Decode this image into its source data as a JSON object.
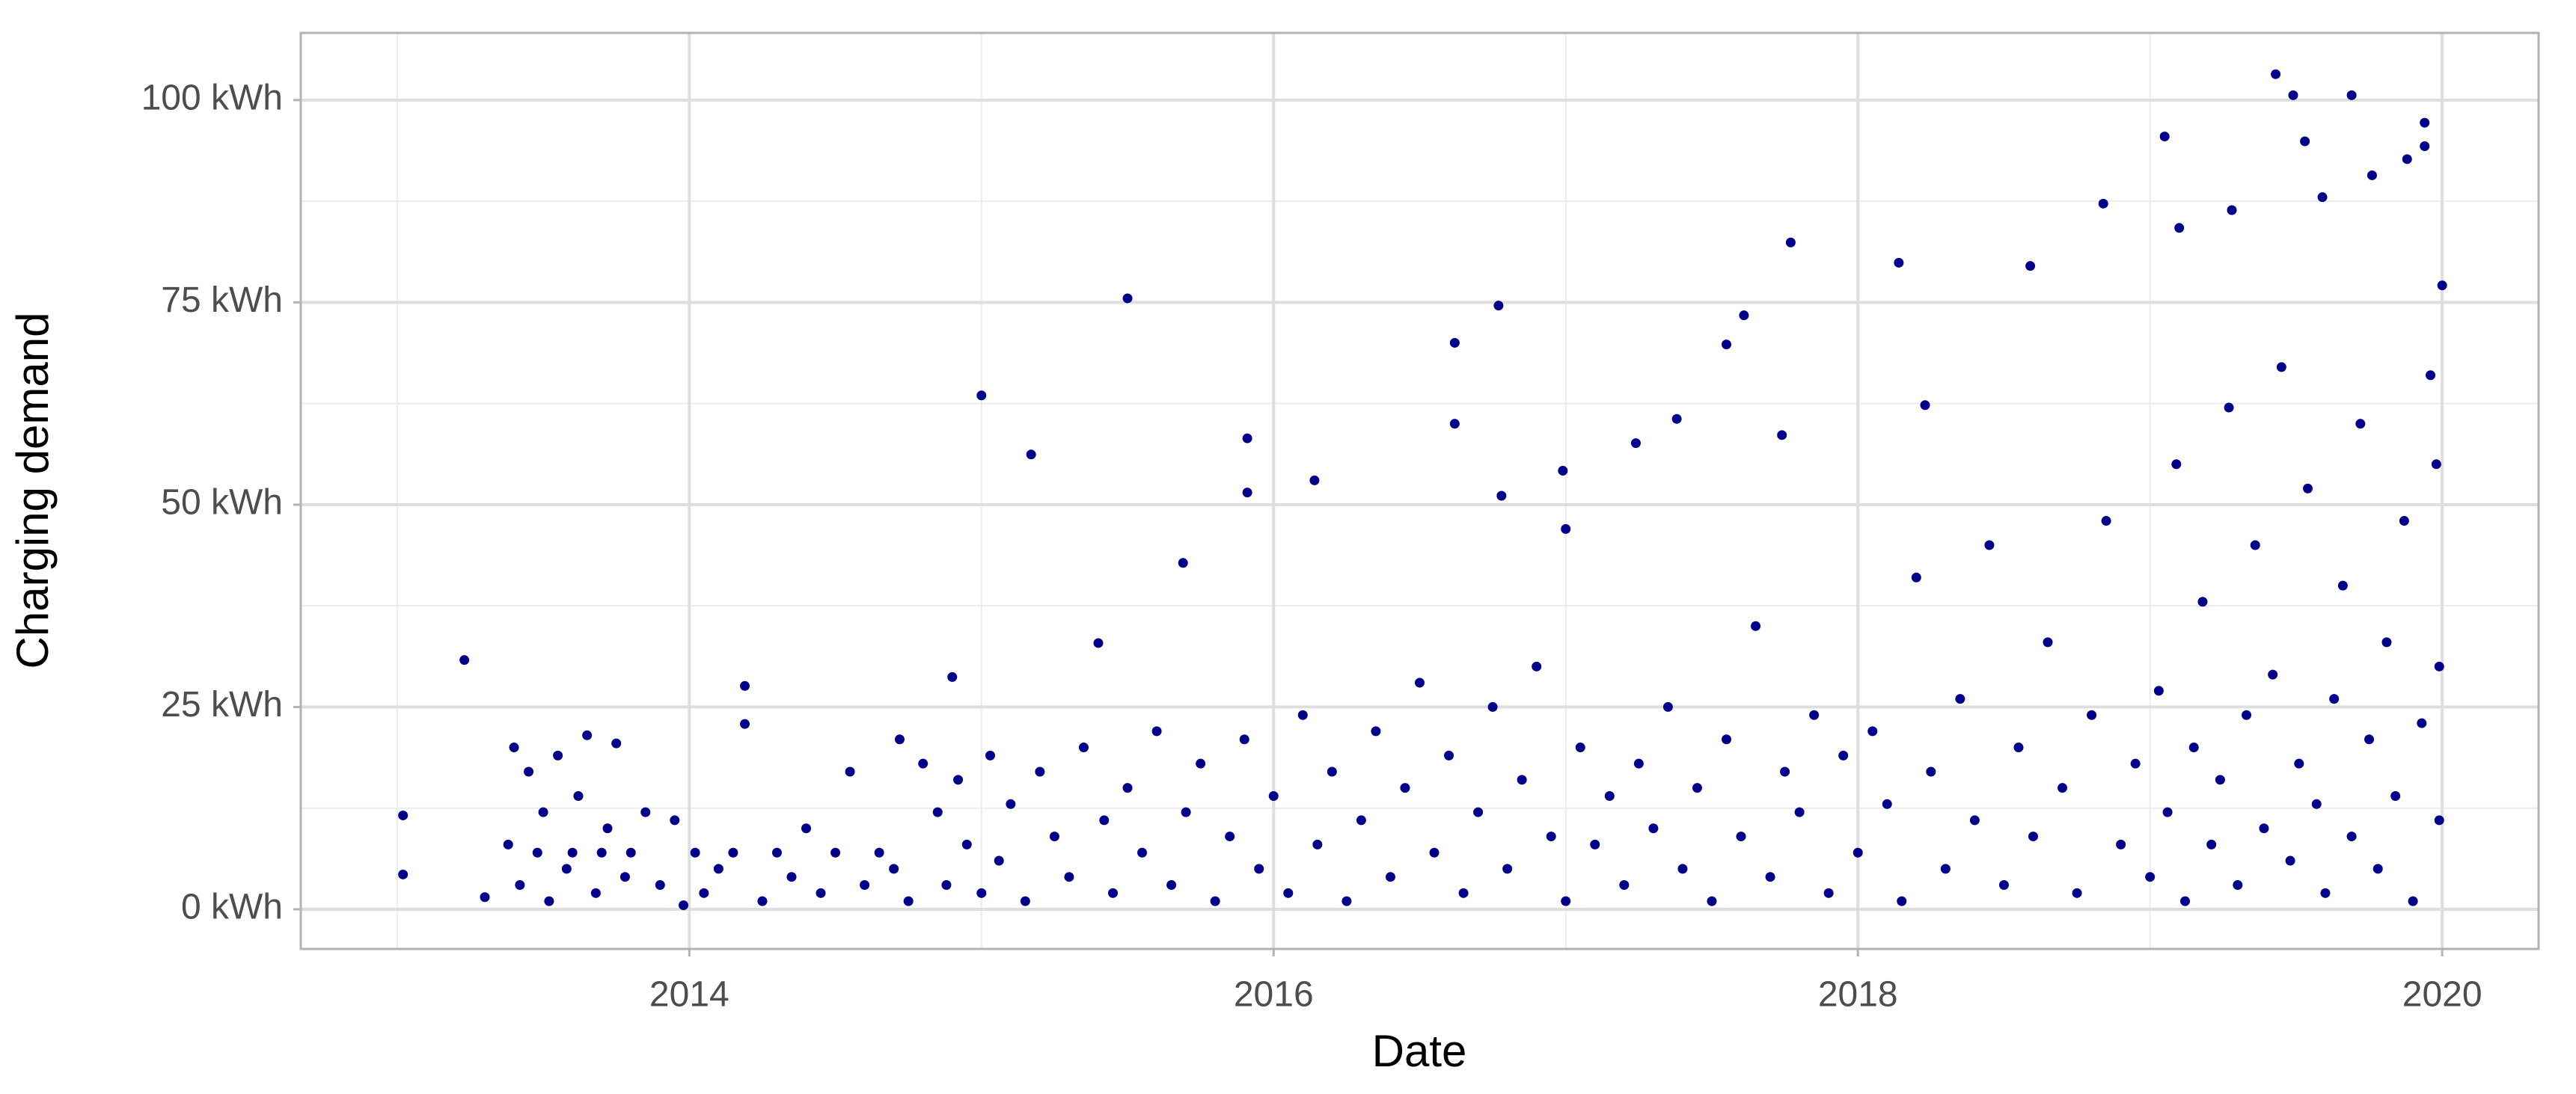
{
  "chart_data": {
    "type": "scatter",
    "x_label": "Date",
    "y_label": "Charging demand",
    "color": "#00008b",
    "grid": true,
    "xlim": [
      2012.67,
      2020.33
    ],
    "ylim": [
      -4.9,
      108.3
    ],
    "xticks": [
      2014,
      2016,
      2018,
      2020
    ],
    "yticks": [
      {
        "value": 0,
        "label": "0 kWh"
      },
      {
        "value": 25,
        "label": "25 kWh"
      },
      {
        "value": 50,
        "label": "50 kWh"
      },
      {
        "value": 75,
        "label": "75 kWh"
      },
      {
        "value": 100,
        "label": "100 kWh"
      }
    ],
    "x": [
      2013.02,
      2013.02,
      2013.23,
      2015.0,
      2015.17,
      2015.5,
      2015.69,
      2015.91,
      2015.91,
      2016.14,
      2016.62,
      2016.77,
      2016.62,
      2016.78,
      2016.99,
      2017.0,
      2017.24,
      2017.38,
      2017.61,
      2017.55,
      2017.77,
      2017.74,
      2018.14,
      2018.23,
      2018.59,
      2018.84,
      2019.05,
      2019.28,
      2019.43,
      2019.49,
      2019.69,
      2019.94,
      2019.94,
      2019.88,
      2019.53,
      2020.0,
      2019.59,
      2019.1,
      2019.76,
      2013.3,
      2013.38,
      2013.4,
      2013.42,
      2013.45,
      2013.48,
      2013.5,
      2013.52,
      2013.55,
      2013.58,
      2013.6,
      2013.62,
      2013.65,
      2013.68,
      2013.7,
      2013.72,
      2013.75,
      2013.78,
      2013.8,
      2013.85,
      2013.9,
      2013.95,
      2013.98,
      2014.02,
      2014.05,
      2014.1,
      2014.15,
      2014.19,
      2014.19,
      2014.25,
      2014.3,
      2014.35,
      2014.4,
      2014.45,
      2014.5,
      2014.55,
      2014.6,
      2014.65,
      2014.7,
      2014.72,
      2014.75,
      2014.8,
      2014.85,
      2014.88,
      2014.9,
      2014.92,
      2014.95,
      2015.0,
      2015.03,
      2015.06,
      2015.1,
      2015.15,
      2015.2,
      2015.25,
      2015.3,
      2015.35,
      2015.4,
      2015.42,
      2015.45,
      2015.5,
      2015.55,
      2015.6,
      2015.65,
      2015.7,
      2015.75,
      2015.8,
      2015.85,
      2015.9,
      2015.95,
      2016.0,
      2016.05,
      2016.1,
      2016.15,
      2016.2,
      2016.25,
      2016.3,
      2016.35,
      2016.4,
      2016.45,
      2016.5,
      2016.55,
      2016.6,
      2016.65,
      2016.7,
      2016.75,
      2016.8,
      2016.85,
      2016.9,
      2016.95,
      2017.0,
      2017.05,
      2017.1,
      2017.15,
      2017.2,
      2017.25,
      2017.3,
      2017.35,
      2017.4,
      2017.45,
      2017.5,
      2017.55,
      2017.6,
      2017.65,
      2017.7,
      2017.75,
      2017.8,
      2017.85,
      2017.9,
      2017.95,
      2018.0,
      2018.05,
      2018.1,
      2018.15,
      2018.2,
      2018.25,
      2018.3,
      2018.35,
      2018.4,
      2018.45,
      2018.5,
      2018.55,
      2018.6,
      2018.65,
      2018.7,
      2018.75,
      2018.8,
      2018.85,
      2018.9,
      2018.95,
      2019.0,
      2019.03,
      2019.06,
      2019.09,
      2019.12,
      2019.15,
      2019.18,
      2019.21,
      2019.24,
      2019.27,
      2019.3,
      2019.33,
      2019.36,
      2019.39,
      2019.42,
      2019.45,
      2019.48,
      2019.51,
      2019.54,
      2019.57,
      2019.6,
      2019.63,
      2019.66,
      2019.69,
      2019.72,
      2019.75,
      2019.78,
      2019.81,
      2019.84,
      2019.87,
      2019.9,
      2019.93,
      2019.96,
      2019.99,
      2019.99,
      2019.98
    ],
    "values": [
      11.6,
      4.3,
      30.8,
      63.5,
      56.2,
      75.5,
      42.8,
      58.2,
      51.5,
      53,
      70,
      74.6,
      60,
      51.1,
      54.2,
      47,
      57.6,
      60.6,
      73.4,
      69.8,
      82.4,
      58.6,
      79.9,
      62.3,
      79.5,
      87.2,
      95.5,
      86.4,
      103.2,
      100.6,
      100.6,
      97.2,
      94.3,
      92.7,
      94.9,
      77.1,
      88,
      84.2,
      90.7,
      1.5,
      8,
      20,
      3,
      17,
      7,
      12,
      1,
      19,
      5,
      7,
      14,
      21.5,
      2,
      7,
      10,
      20.5,
      4,
      7,
      12,
      3,
      11,
      0.5,
      7,
      2,
      5,
      7,
      27.6,
      22.9,
      1,
      7,
      4,
      10,
      2,
      7,
      17,
      3,
      7,
      5,
      21,
      1,
      18,
      12,
      3,
      28.7,
      16,
      8,
      2,
      19,
      6,
      13,
      1,
      17,
      9,
      4,
      20,
      32.9,
      11,
      2,
      15,
      7,
      22,
      3,
      12,
      18,
      1,
      9,
      21,
      5,
      14,
      2,
      24,
      8,
      17,
      1,
      11,
      22,
      4,
      15,
      28,
      7,
      19,
      2,
      12,
      25,
      5,
      16,
      30,
      9,
      1,
      20,
      8,
      14,
      3,
      18,
      10,
      25,
      5,
      15,
      1,
      21,
      9,
      35,
      4,
      17,
      12,
      24,
      2,
      19,
      7,
      22,
      13,
      1,
      41,
      17,
      5,
      26,
      11,
      45,
      3,
      20,
      9,
      33,
      15,
      2,
      24,
      48,
      8,
      18,
      4,
      27,
      12,
      55,
      1,
      20,
      38,
      8,
      16,
      62,
      3,
      24,
      45,
      10,
      29,
      67,
      6,
      18,
      52,
      13,
      2,
      26,
      40,
      9,
      60,
      21,
      5,
      33,
      14,
      48,
      1,
      23,
      66,
      11,
      30,
      55
    ]
  }
}
